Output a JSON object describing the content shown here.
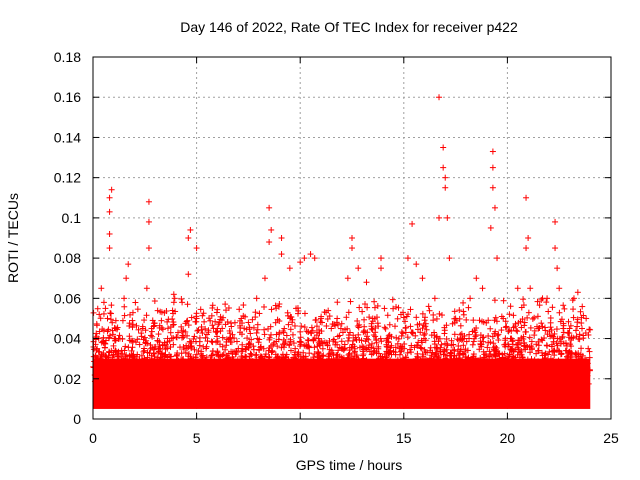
{
  "chart_data": {
    "type": "scatter",
    "title": "Day 146 of 2022, Rate Of TEC Index for receiver p422",
    "xlabel": "GPS time / hours",
    "ylabel": "ROTI / TECUs",
    "xlim": [
      0,
      25
    ],
    "ylim": [
      0,
      0.18
    ],
    "xticks": [
      "0",
      "5",
      "10",
      "15",
      "20",
      "25"
    ],
    "yticks": [
      "0",
      "0.02",
      "0.04",
      "0.06",
      "0.08",
      "0.1",
      "0.12",
      "0.14",
      "0.16",
      "0.18"
    ],
    "grid": true,
    "marker": "plus",
    "color": "#ff0000",
    "background_band": {
      "x_range": [
        0,
        24
      ],
      "y_range": [
        0.005,
        0.03
      ]
    },
    "series": [
      {
        "points": [
          [
            0.2,
            0.035
          ],
          [
            0.3,
            0.052
          ],
          [
            0.4,
            0.065
          ],
          [
            0.6,
            0.055
          ],
          [
            0.7,
            0.05
          ],
          [
            0.8,
            0.092
          ],
          [
            0.8,
            0.085
          ],
          [
            0.8,
            0.11
          ],
          [
            0.9,
            0.114
          ],
          [
            0.8,
            0.103
          ],
          [
            1.1,
            0.045
          ],
          [
            1.3,
            0.04
          ],
          [
            1.5,
            0.06
          ],
          [
            1.6,
            0.07
          ],
          [
            1.7,
            0.077
          ],
          [
            2.0,
            0.03
          ],
          [
            2.4,
            0.045
          ],
          [
            2.6,
            0.065
          ],
          [
            2.7,
            0.108
          ],
          [
            2.7,
            0.098
          ],
          [
            2.7,
            0.085
          ],
          [
            3.2,
            0.035
          ],
          [
            3.6,
            0.04
          ],
          [
            3.9,
            0.062
          ],
          [
            4.3,
            0.058
          ],
          [
            4.6,
            0.072
          ],
          [
            4.6,
            0.09
          ],
          [
            4.7,
            0.094
          ],
          [
            5.0,
            0.085
          ],
          [
            5.0,
            0.05
          ],
          [
            5.5,
            0.042
          ],
          [
            6.0,
            0.045
          ],
          [
            6.6,
            0.04
          ],
          [
            7.2,
            0.035
          ],
          [
            7.5,
            0.048
          ],
          [
            7.9,
            0.06
          ],
          [
            8.3,
            0.07
          ],
          [
            8.5,
            0.105
          ],
          [
            8.5,
            0.088
          ],
          [
            8.6,
            0.094
          ],
          [
            9.1,
            0.09
          ],
          [
            9.1,
            0.082
          ],
          [
            9.5,
            0.075
          ],
          [
            9.8,
            0.055
          ],
          [
            10.0,
            0.078
          ],
          [
            10.2,
            0.08
          ],
          [
            10.5,
            0.082
          ],
          [
            10.7,
            0.08
          ],
          [
            11.0,
            0.05
          ],
          [
            11.5,
            0.045
          ],
          [
            12.0,
            0.035
          ],
          [
            12.3,
            0.07
          ],
          [
            12.5,
            0.09
          ],
          [
            12.5,
            0.085
          ],
          [
            12.8,
            0.075
          ],
          [
            13.2,
            0.068
          ],
          [
            13.5,
            0.05
          ],
          [
            13.9,
            0.08
          ],
          [
            13.9,
            0.075
          ],
          [
            14.2,
            0.04
          ],
          [
            14.8,
            0.035
          ],
          [
            15.2,
            0.08
          ],
          [
            15.4,
            0.097
          ],
          [
            15.6,
            0.077
          ],
          [
            15.9,
            0.07
          ],
          [
            16.2,
            0.056
          ],
          [
            16.5,
            0.06
          ],
          [
            16.7,
            0.1
          ],
          [
            16.7,
            0.16
          ],
          [
            16.9,
            0.135
          ],
          [
            16.9,
            0.125
          ],
          [
            17.0,
            0.12
          ],
          [
            17.0,
            0.115
          ],
          [
            17.1,
            0.1
          ],
          [
            17.2,
            0.08
          ],
          [
            17.5,
            0.05
          ],
          [
            17.9,
            0.04
          ],
          [
            18.2,
            0.06
          ],
          [
            18.5,
            0.07
          ],
          [
            18.8,
            0.065
          ],
          [
            19.2,
            0.095
          ],
          [
            19.3,
            0.133
          ],
          [
            19.3,
            0.125
          ],
          [
            19.3,
            0.115
          ],
          [
            19.4,
            0.105
          ],
          [
            19.5,
            0.08
          ],
          [
            19.8,
            0.05
          ],
          [
            20.2,
            0.04
          ],
          [
            20.5,
            0.065
          ],
          [
            20.9,
            0.11
          ],
          [
            20.9,
            0.085
          ],
          [
            21.0,
            0.09
          ],
          [
            21.1,
            0.065
          ],
          [
            21.5,
            0.045
          ],
          [
            21.8,
            0.03
          ],
          [
            22.3,
            0.098
          ],
          [
            22.3,
            0.085
          ],
          [
            22.4,
            0.075
          ],
          [
            22.5,
            0.065
          ],
          [
            23.0,
            0.045
          ],
          [
            23.4,
            0.063
          ],
          [
            23.6,
            0.045
          ],
          [
            23.8,
            0.05
          ],
          [
            23.9,
            0.035
          ]
        ]
      }
    ]
  }
}
